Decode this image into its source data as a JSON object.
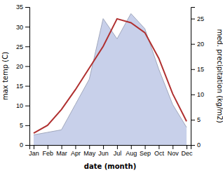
{
  "chart_data": {
    "type": "line",
    "categories": [
      "Jan",
      "Feb",
      "Mar",
      "Apr",
      "May",
      "Jun",
      "Jul",
      "Aug",
      "Sep",
      "Oct",
      "Nov",
      "Dec"
    ],
    "xlabel": "date (month)",
    "ylabel": "max temp (C)",
    "y2label": "med. precipitation (kg/m2)",
    "ylim": [
      0,
      35
    ],
    "yticks": [
      0,
      5,
      10,
      15,
      20,
      25,
      30,
      35
    ],
    "y2lim": [
      0,
      27.3
    ],
    "y2ticks": [
      0,
      5,
      10,
      15,
      20,
      25
    ],
    "series": [
      {
        "type": "area",
        "axis": "y2",
        "color": "#c8d0ea",
        "values": [
          2.0,
          2.5,
          3.0,
          8.0,
          13.0,
          25.0,
          21.0,
          26.0,
          23.0,
          15.0,
          8.0,
          3.5
        ]
      },
      {
        "type": "line",
        "color": "#b03030",
        "values": [
          3.0,
          5.0,
          9.0,
          14.0,
          19.5,
          25.0,
          32.0,
          31.0,
          28.5,
          22.0,
          13.0,
          6.0
        ]
      }
    ]
  }
}
